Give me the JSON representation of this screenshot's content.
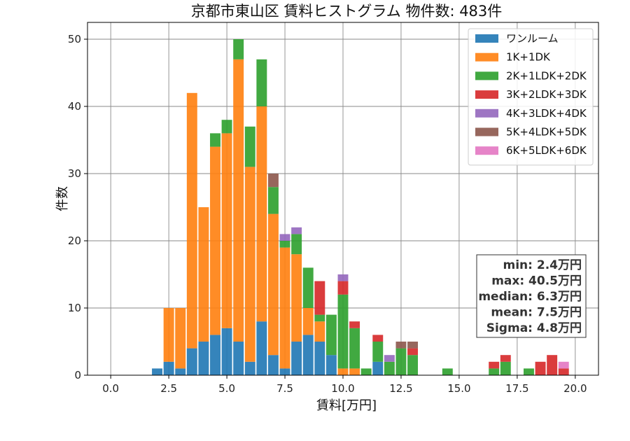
{
  "chart_data": {
    "type": "bar",
    "stacked": true,
    "title": "京都市東山区 賃料ヒストグラム 物件数: 483件",
    "xlabel": "賃料[万円]",
    "ylabel": "件数",
    "xlim": [
      -1.0,
      21.0
    ],
    "ylim": [
      0,
      52.5
    ],
    "xticks": [
      0.0,
      2.5,
      5.0,
      7.5,
      10.0,
      12.5,
      15.0,
      17.5,
      20.0
    ],
    "xtick_labels": [
      "0.0",
      "2.5",
      "5.0",
      "7.5",
      "10.0",
      "12.5",
      "15.0",
      "17.5",
      "20.0"
    ],
    "yticks": [
      0,
      10,
      20,
      30,
      40,
      50
    ],
    "ytick_labels": [
      "0",
      "10",
      "20",
      "30",
      "40",
      "50"
    ],
    "grid": true,
    "legend_position": "top-right",
    "bin_width": 0.5,
    "bins": [
      2.0,
      2.5,
      3.0,
      3.5,
      4.0,
      4.5,
      5.0,
      5.5,
      6.0,
      6.5,
      7.0,
      7.5,
      8.0,
      8.5,
      9.0,
      9.5,
      10.0,
      10.5,
      11.0,
      11.5,
      12.0,
      12.5,
      13.0,
      13.5,
      14.0,
      14.5,
      15.0,
      15.5,
      16.0,
      16.5,
      17.0,
      17.5,
      18.0,
      18.5,
      19.0,
      19.5
    ],
    "series": [
      {
        "name": "ワンルーム",
        "color": "#1f77b4",
        "values": [
          1,
          2,
          1,
          4,
          5,
          6,
          7,
          5,
          2,
          8,
          3,
          1,
          5,
          6,
          5,
          3,
          0,
          0,
          0,
          2,
          0,
          0,
          0,
          0,
          0,
          0,
          0,
          0,
          0,
          0,
          0,
          0,
          0,
          0,
          0,
          0
        ]
      },
      {
        "name": "1K+1DK",
        "color": "#ff7f0e",
        "values": [
          0,
          8,
          9,
          38,
          20,
          28,
          29,
          42,
          29,
          32,
          21,
          18,
          13,
          4,
          3,
          0,
          1,
          1,
          0,
          0,
          0,
          0,
          0,
          0,
          0,
          0,
          0,
          0,
          0,
          0,
          0,
          0,
          0,
          0,
          0,
          0
        ]
      },
      {
        "name": "2K+1LDK+2DK",
        "color": "#2ca02c",
        "values": [
          0,
          0,
          0,
          0,
          0,
          2,
          2,
          3,
          6,
          7,
          4,
          1,
          3,
          6,
          1,
          6,
          11,
          6,
          1,
          3,
          2,
          4,
          3,
          0,
          0,
          1,
          0,
          0,
          0,
          1,
          2,
          0,
          1,
          0,
          0,
          0
        ]
      },
      {
        "name": "3K+2LDK+3DK",
        "color": "#d62728",
        "values": [
          0,
          0,
          0,
          0,
          0,
          0,
          0,
          0,
          0,
          0,
          0,
          0,
          0,
          0,
          5,
          0,
          2,
          1,
          0,
          1,
          0,
          0,
          1,
          0,
          0,
          0,
          0,
          0,
          0,
          1,
          1,
          0,
          0,
          2,
          3,
          1
        ]
      },
      {
        "name": "4K+3LDK+4DK",
        "color": "#9467bd",
        "values": [
          0,
          0,
          0,
          0,
          0,
          0,
          0,
          0,
          0,
          0,
          0,
          1,
          1,
          0,
          0,
          0,
          1,
          0,
          0,
          0,
          1,
          0,
          0,
          0,
          0,
          0,
          0,
          0,
          0,
          0,
          0,
          0,
          0,
          0,
          0,
          0
        ]
      },
      {
        "name": "5K+4LDK+5DK",
        "color": "#8c564b",
        "values": [
          0,
          0,
          0,
          0,
          0,
          0,
          0,
          0,
          0,
          0,
          2,
          0,
          0,
          0,
          0,
          0,
          0,
          0,
          0,
          0,
          0,
          1,
          1,
          0,
          0,
          0,
          0,
          0,
          0,
          0,
          0,
          0,
          0,
          0,
          0,
          0
        ]
      },
      {
        "name": "6K+5LDK+6DK",
        "color": "#e377c2",
        "values": [
          0,
          0,
          0,
          0,
          0,
          0,
          0,
          0,
          0,
          0,
          0,
          0,
          0,
          0,
          0,
          0,
          0,
          0,
          0,
          0,
          0,
          0,
          0,
          0,
          0,
          0,
          0,
          0,
          0,
          0,
          0,
          0,
          0,
          0,
          0,
          1
        ]
      }
    ],
    "stats": [
      "min: 2.4万円",
      "max: 40.5万円",
      "median: 6.3万円",
      "mean: 7.5万円",
      "Sigma: 4.8万円"
    ]
  }
}
